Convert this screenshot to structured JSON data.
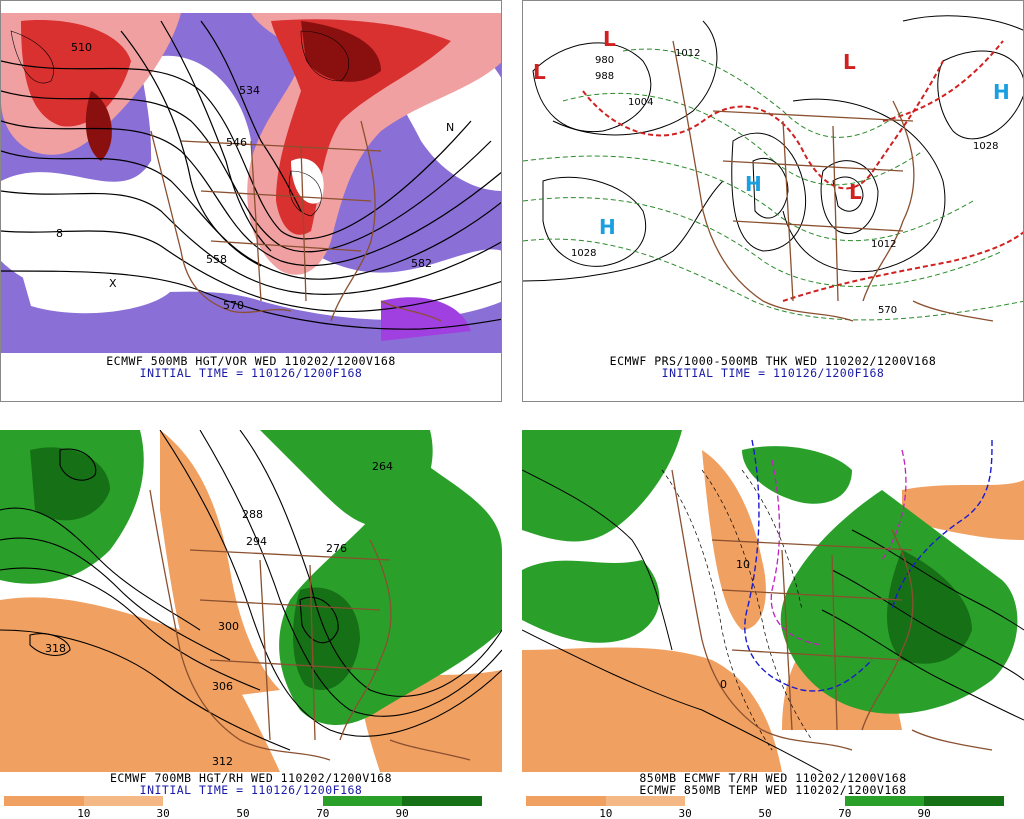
{
  "panels": {
    "p1": {
      "caption": "ECMWF 500MB HGT/VOR WED 110202/1200V168",
      "initial": "INITIAL TIME = 110126/1200F168",
      "labels": [
        "510",
        "534",
        "546",
        "558",
        "570",
        "582",
        "8",
        "X",
        "N"
      ]
    },
    "p2": {
      "caption": "ECMWF PRS/1000-500MB THK WED 110202/1200V168",
      "initial": "INITIAL TIME = 110126/1200F168",
      "labels": [
        "1028",
        "1012",
        "1004",
        "988",
        "980",
        "570",
        "1028",
        "1012"
      ],
      "highs": [
        "H",
        "H",
        "H"
      ],
      "lows": [
        "L",
        "L",
        "L",
        "L"
      ]
    },
    "p3": {
      "caption": "ECMWF 700MB HGT/RH WED 110202/1200V168",
      "initial": "INITIAL TIME = 110126/1200F168",
      "labels": [
        "318",
        "306",
        "300",
        "294",
        "288",
        "276",
        "312",
        "264"
      ],
      "colorbar_ticks": [
        "10",
        "30",
        "50",
        "70",
        "90"
      ]
    },
    "p4": {
      "caption": "850MB ECMWF T/RH WED 110202/1200V168",
      "caption2": "ECMWF 850MB TEMP WED 110202/1200V168",
      "labels": [
        "10",
        "0"
      ],
      "colorbar_ticks": [
        "10",
        "30",
        "50",
        "70",
        "90"
      ]
    }
  },
  "colors": {
    "vorticity_red": "#d93030",
    "vorticity_pink": "#f0a0a0",
    "vorticity_purple": "#8a6fd6",
    "rh_orange": "#f0a060",
    "rh_green": "#2aa02a",
    "rh_darkgreen": "#167016",
    "map_brown": "#8a5030",
    "high_blue": "#1aa0e0",
    "low_red": "#d02020"
  }
}
